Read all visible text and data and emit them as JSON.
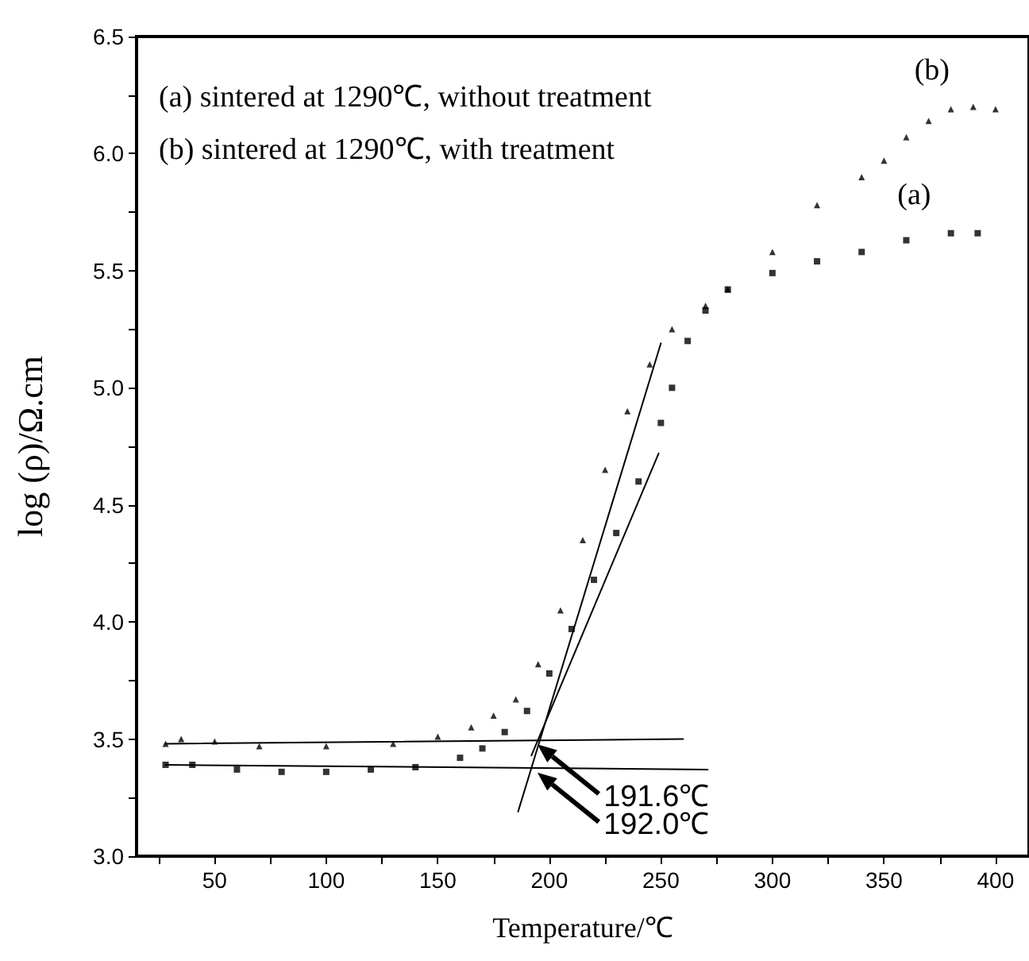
{
  "chart_data": {
    "type": "scatter",
    "xlabel": "Temperature/℃",
    "ylabel": "log (ρ)/Ω.cm",
    "xlim": [
      15,
      415
    ],
    "ylim": [
      3.0,
      6.5
    ],
    "xticks": [
      {
        "value": 25,
        "label": null
      },
      50,
      {
        "value": 75,
        "label": null
      },
      100,
      {
        "value": 125,
        "label": null
      },
      150,
      {
        "value": 175,
        "label": null
      },
      200,
      {
        "value": 225,
        "label": null
      },
      250,
      {
        "value": 275,
        "label": null
      },
      300,
      {
        "value": 325,
        "label": null
      },
      350,
      {
        "value": 375,
        "label": null
      },
      400
    ],
    "yticks": [
      {
        "value": 3.0,
        "label": "3.0"
      },
      {
        "value": 3.25,
        "label": null
      },
      {
        "value": 3.5,
        "label": "3.5"
      },
      {
        "value": 3.75,
        "label": null
      },
      {
        "value": 4.0,
        "label": "4.0"
      },
      {
        "value": 4.25,
        "label": null
      },
      {
        "value": 4.5,
        "label": "4.5"
      },
      {
        "value": 4.75,
        "label": null
      },
      {
        "value": 5.0,
        "label": "5.0"
      },
      {
        "value": 5.25,
        "label": null
      },
      {
        "value": 5.5,
        "label": "5.5"
      },
      {
        "value": 5.75,
        "label": null
      },
      {
        "value": 6.0,
        "label": "6.0"
      },
      {
        "value": 6.25,
        "label": null
      },
      {
        "value": 6.5,
        "label": "6.5"
      }
    ],
    "grid": false,
    "annotations": [
      "(a) sintered at 1290℃, without treatment",
      "(b) sintered at 1290℃, with treatment",
      {
        "text": "191.6℃",
        "x": 193,
        "y": 3.49
      },
      {
        "text": "192.0℃",
        "x": 193,
        "y": 3.37
      }
    ],
    "series": [
      {
        "name": "(a)",
        "marker": "square",
        "color": "#000000",
        "x": [
          28,
          40,
          60,
          80,
          100,
          120,
          140,
          160,
          170,
          180,
          190,
          200,
          210,
          220,
          230,
          240,
          250,
          255,
          262,
          270,
          280,
          300,
          320,
          340,
          360,
          380,
          392
        ],
        "values": [
          3.39,
          3.39,
          3.37,
          3.36,
          3.36,
          3.37,
          3.38,
          3.42,
          3.46,
          3.53,
          3.62,
          3.78,
          3.97,
          4.18,
          4.38,
          4.6,
          4.85,
          5.0,
          5.2,
          5.33,
          5.42,
          5.49,
          5.54,
          5.58,
          5.63,
          5.66,
          5.66
        ]
      },
      {
        "name": "(b)",
        "marker": "triangle",
        "color": "#000000",
        "x": [
          28,
          35,
          50,
          70,
          100,
          130,
          150,
          165,
          175,
          185,
          195,
          205,
          215,
          225,
          235,
          245,
          255,
          270,
          280,
          300,
          320,
          340,
          350,
          360,
          370,
          380,
          390,
          400
        ],
        "values": [
          3.48,
          3.5,
          3.49,
          3.47,
          3.47,
          3.48,
          3.51,
          3.55,
          3.6,
          3.67,
          3.82,
          4.05,
          4.35,
          4.65,
          4.9,
          5.1,
          5.25,
          5.35,
          5.42,
          5.58,
          5.78,
          5.9,
          5.97,
          6.07,
          6.14,
          6.19,
          6.2,
          6.19
        ]
      },
      {
        "type": "line",
        "color": "#000000",
        "x": [
          28,
          260
        ],
        "values": [
          3.48,
          3.5
        ]
      },
      {
        "type": "line",
        "color": "#000000",
        "x": [
          28,
          271
        ],
        "values": [
          3.39,
          3.37
        ]
      },
      {
        "type": "line",
        "color": "#000000",
        "x": [
          186,
          250
        ],
        "values": [
          3.19,
          5.19
        ]
      },
      {
        "type": "line",
        "color": "#000000",
        "x": [
          192,
          249
        ],
        "values": [
          3.43,
          4.72
        ]
      }
    ]
  }
}
